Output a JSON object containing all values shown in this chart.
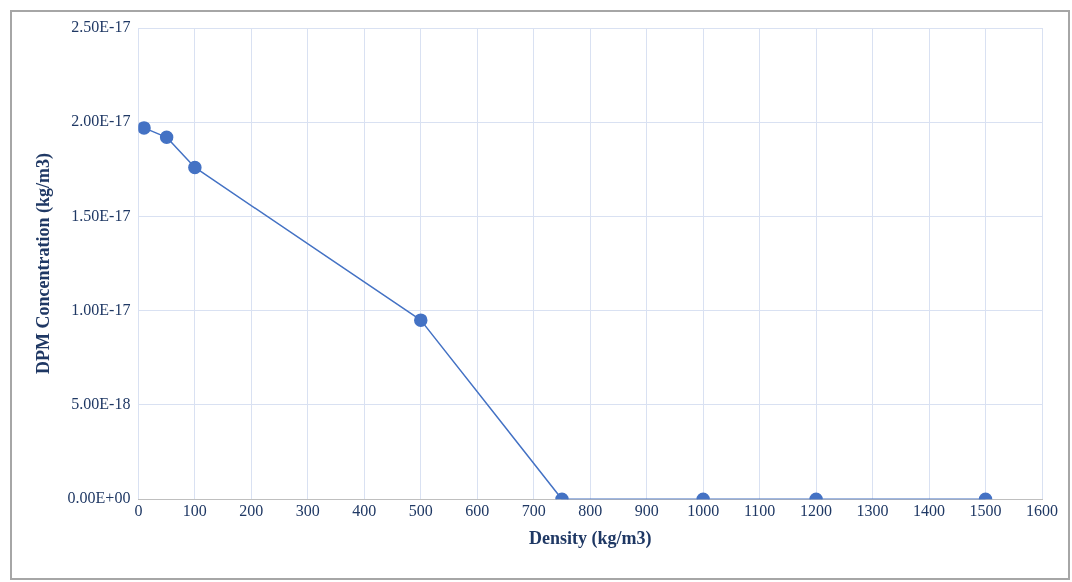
{
  "chart_data": {
    "type": "line",
    "xlabel": "Density (kg/m3)",
    "ylabel": "DPM Concentration (kg/m3)",
    "x": [
      10,
      50,
      100,
      500,
      750,
      1000,
      1200,
      1500
    ],
    "series": [
      {
        "color": "#4472c4",
        "values": [
          1.97e-17,
          1.92e-17,
          1.76e-17,
          9.5e-18,
          0,
          0,
          0,
          0
        ]
      }
    ],
    "xlim": [
      0,
      1600
    ],
    "xticks": [
      0,
      100,
      200,
      300,
      400,
      500,
      600,
      700,
      800,
      900,
      1000,
      1100,
      1200,
      1300,
      1400,
      1500,
      1600
    ],
    "ylim": [
      0,
      2.5e-17
    ],
    "yticks": [
      {
        "value": 0,
        "label": "0.00E+00"
      },
      {
        "value": 5e-18,
        "label": "5.00E-18"
      },
      {
        "value": 1e-17,
        "label": "1.00E-17"
      },
      {
        "value": 1.5e-17,
        "label": "1.50E-17"
      },
      {
        "value": 2e-17,
        "label": "2.00E-17"
      },
      {
        "value": 2.5e-17,
        "label": "2.50E-17"
      }
    ],
    "grid": true,
    "legend": false,
    "marker": "circle",
    "line_style": "solid"
  }
}
